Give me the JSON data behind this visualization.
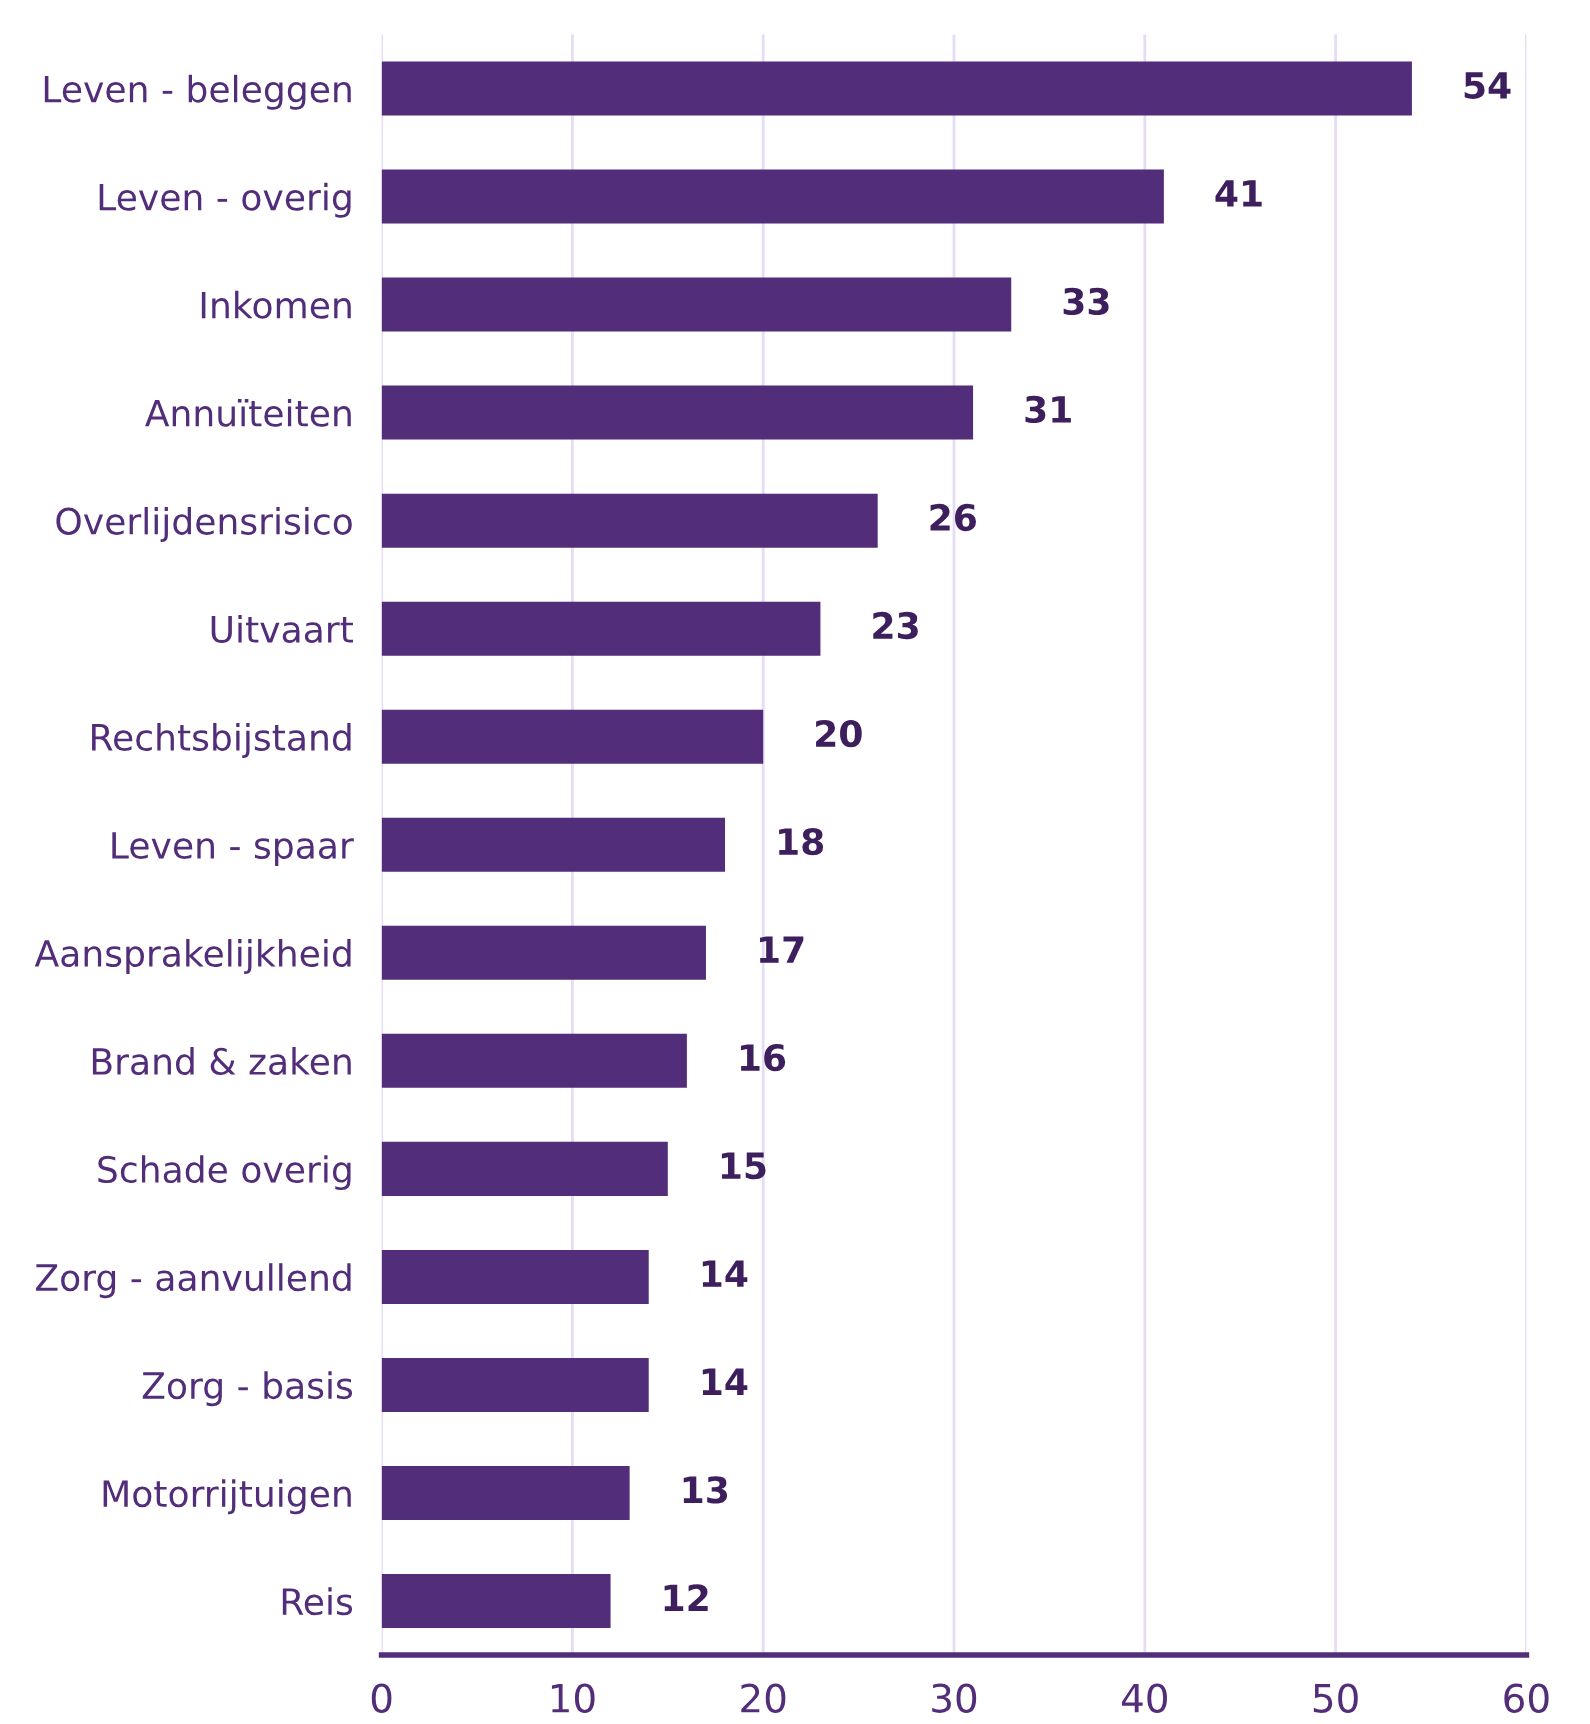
{
  "chart_data": {
    "type": "bar",
    "orientation": "horizontal",
    "categories": [
      "Leven - beleggen",
      "Leven - overig",
      "Inkomen",
      "Annuïteiten",
      "Overlijdensrisico",
      "Uitvaart",
      "Rechtsbijstand",
      "Leven - spaar",
      "Aansprakelijkheid",
      "Brand & zaken",
      "Schade overig",
      "Zorg - aanvullend",
      "Zorg - basis",
      "Motorrijtuigen",
      "Reis"
    ],
    "values": [
      54,
      41,
      33,
      31,
      26,
      23,
      20,
      18,
      17,
      16,
      15,
      14,
      14,
      13,
      12
    ],
    "color": "#522d7a",
    "xlim": [
      0,
      60
    ],
    "xticks": [
      0,
      10,
      20,
      30,
      40,
      50,
      60
    ],
    "grid": "x",
    "data_labels": true
  }
}
